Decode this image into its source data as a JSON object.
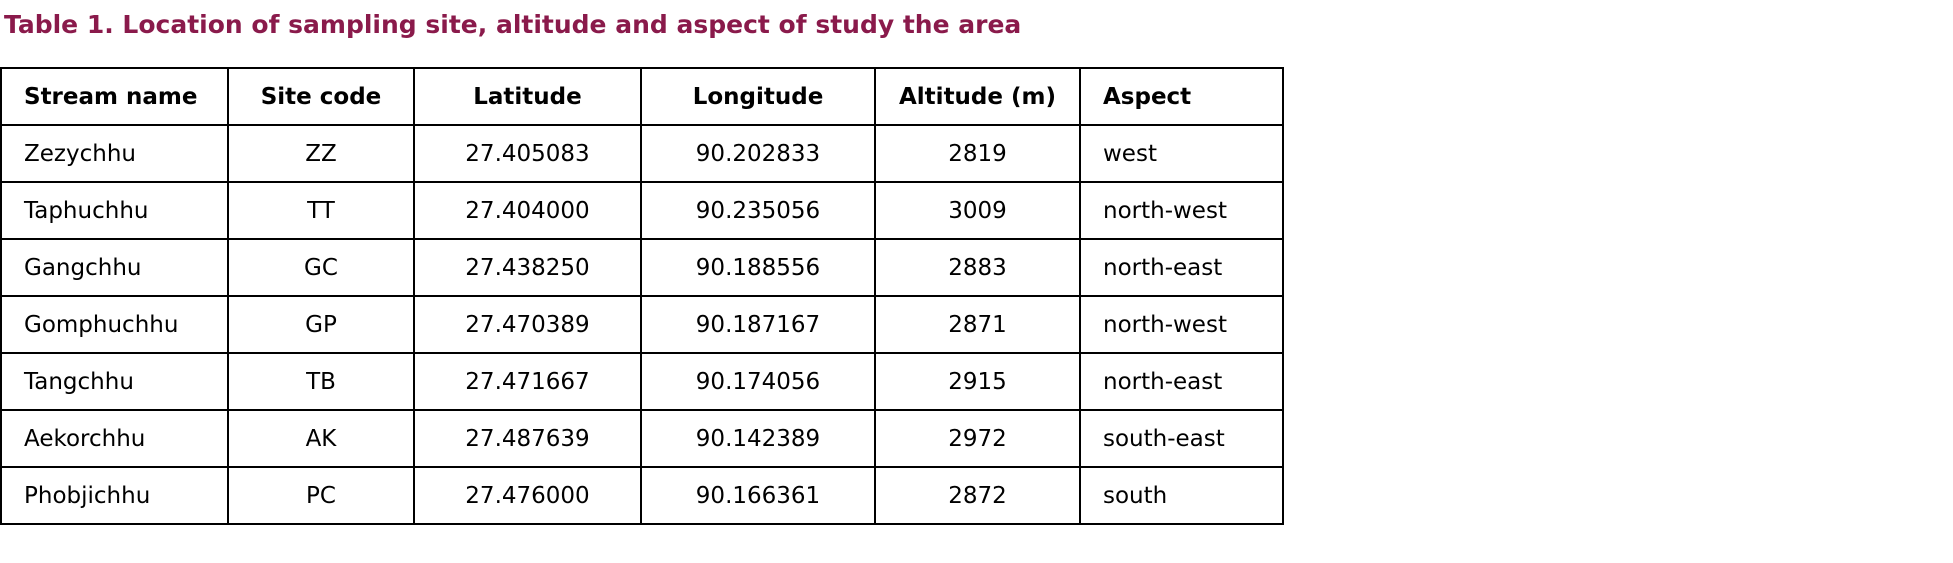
{
  "title": "Table 1. Location of sampling site, altitude and aspect of study the area",
  "table": {
    "header": [
      "Stream name",
      "Site code",
      "Latitude",
      "Longitude",
      "Altitude (m)",
      "Aspect"
    ],
    "rows": [
      [
        "Zezychhu",
        "ZZ",
        "27.405083",
        "90.202833",
        "2819",
        "west"
      ],
      [
        "Taphuchhu",
        "TT",
        "27.404000",
        "90.235056",
        "3009",
        "north-west"
      ],
      [
        "Gangchhu",
        "GC",
        "27.438250",
        "90.188556",
        "2883",
        "north-east"
      ],
      [
        "Gomphuchhu",
        "GP",
        "27.470389",
        "90.187167",
        "2871",
        "north-west"
      ],
      [
        "Tangchhu",
        "TB",
        "27.471667",
        "90.174056",
        "2915",
        "north-east"
      ],
      [
        "Aekorchhu",
        "AK",
        "27.487639",
        "90.142389",
        "2972",
        "south-east"
      ],
      [
        "Phobjichhu",
        "PC",
        "27.476000",
        "90.166361",
        "2872",
        "south"
      ]
    ]
  }
}
